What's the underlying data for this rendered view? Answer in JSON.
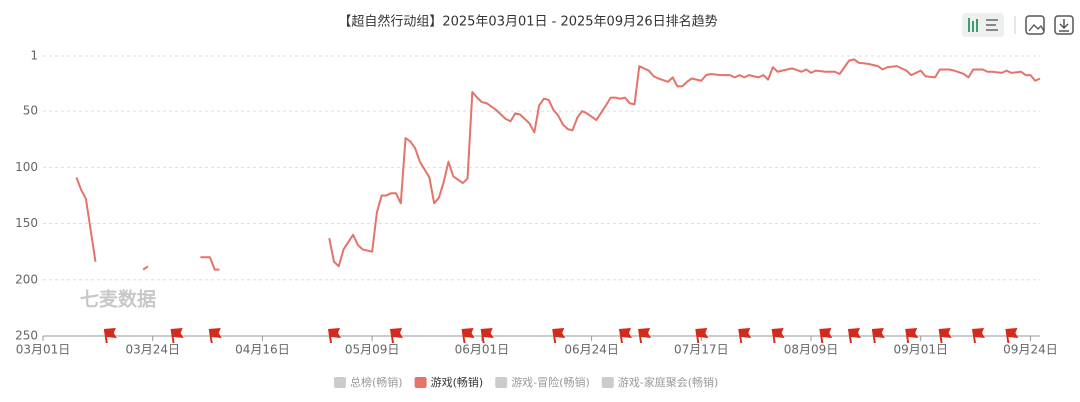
{
  "chart_data": {
    "type": "line",
    "title": "【超自然行动组】2025年03月01日 - 2025年09月26日排名趋势",
    "watermark": "七麦数据",
    "y_inverted": true,
    "grid": true,
    "ylim": [
      1,
      250
    ],
    "yticks": [
      1,
      50,
      100,
      150,
      200,
      250
    ],
    "xlim": [
      0,
      209
    ],
    "xticks": [
      {
        "value": 0,
        "label": "03月01日"
      },
      {
        "value": 23,
        "label": "03月24日"
      },
      {
        "value": 46,
        "label": "04月16日"
      },
      {
        "value": 69,
        "label": "05月09日"
      },
      {
        "value": 92,
        "label": "06月01日"
      },
      {
        "value": 115,
        "label": "06月24日"
      },
      {
        "value": 138,
        "label": "07月17日"
      },
      {
        "value": 161,
        "label": "08月09日"
      },
      {
        "value": 184,
        "label": "09月01日"
      },
      {
        "value": 207,
        "label": "09月24日"
      }
    ],
    "x": [
      7,
      8,
      9,
      11,
      15,
      21,
      22,
      28,
      33,
      35,
      36,
      37,
      48,
      60,
      61,
      62,
      63,
      65,
      66,
      67,
      69,
      70,
      71,
      72,
      73,
      74,
      75,
      76,
      77,
      78,
      79,
      80,
      81,
      82,
      83,
      84,
      85,
      86,
      88,
      89,
      90,
      91,
      92,
      93,
      95,
      96,
      97,
      98,
      99,
      100,
      101,
      102,
      103,
      104,
      105,
      106,
      107,
      108,
      109,
      110,
      111,
      112,
      113,
      114,
      115,
      116,
      118,
      119,
      120,
      121,
      122,
      123,
      124,
      125,
      126,
      127,
      128,
      129,
      131,
      132,
      133,
      134,
      135,
      136,
      138,
      139,
      140,
      142,
      144,
      145,
      146,
      147,
      148,
      150,
      151,
      152,
      153,
      154,
      156,
      157,
      159,
      160,
      161,
      162,
      164,
      165,
      166,
      167,
      169,
      170,
      171,
      173,
      175,
      176,
      177,
      179,
      181,
      182,
      183,
      184,
      185,
      187,
      188,
      190,
      191,
      193,
      194,
      195,
      197,
      198,
      199,
      201,
      202,
      203,
      205,
      206,
      207,
      208,
      209
    ],
    "series": [
      {
        "name": "总榜(畅销)",
        "color": "#cccccc",
        "visible": false
      },
      {
        "name": "游戏(畅销)",
        "color": "#e4736a",
        "visible": true,
        "values": [
          109,
          120,
          128,
          184,
          null,
          191,
          188,
          null,
          180,
          180,
          191,
          191,
          null,
          163,
          184,
          188,
          173,
          160,
          169,
          173,
          175,
          140,
          125,
          125,
          123,
          123,
          132,
          74,
          77,
          83,
          95,
          102,
          109,
          132,
          127,
          113,
          95,
          108,
          114,
          110,
          33,
          38,
          42,
          43,
          49,
          53,
          57,
          59,
          52,
          53,
          57,
          61,
          69,
          45,
          39,
          40,
          49,
          54,
          62,
          66,
          67,
          56,
          50,
          52,
          55,
          58,
          45,
          38,
          38,
          39,
          38,
          43,
          44,
          10,
          12,
          14,
          19,
          21,
          24,
          20,
          28,
          28,
          24,
          21,
          23,
          18,
          17,
          18,
          18,
          20,
          18,
          20,
          18,
          20,
          18,
          22,
          11,
          15,
          13,
          12,
          15,
          13,
          16,
          14,
          15,
          15,
          15,
          17,
          5,
          4,
          7,
          8,
          10,
          13,
          11,
          10,
          14,
          18,
          16,
          14,
          19,
          20,
          13,
          13,
          14,
          17,
          20,
          13,
          13,
          15,
          15,
          16,
          14,
          16,
          15,
          18,
          18,
          23,
          21
        ]
      },
      {
        "name": "游戏-冒险(畅销)",
        "color": "#cccccc",
        "visible": false
      },
      {
        "name": "游戏-家庭聚会(畅销)",
        "color": "#cccccc",
        "visible": false
      }
    ],
    "flags": {
      "color": "#d42a1c",
      "x": [
        14,
        28,
        36,
        61,
        74,
        89,
        93,
        108,
        122,
        126,
        138,
        147,
        154,
        164,
        170,
        175,
        182,
        189,
        196,
        203
      ]
    }
  }
}
